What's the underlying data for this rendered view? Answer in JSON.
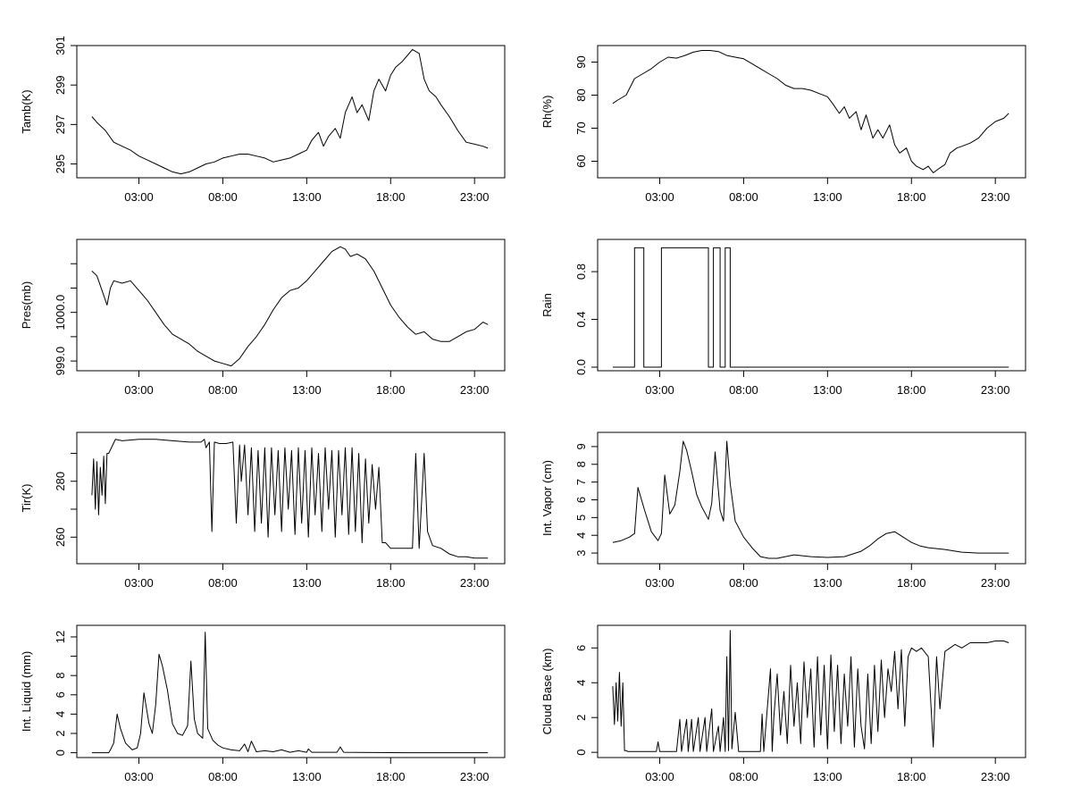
{
  "figure": {
    "type": "multi-panel time series"
  },
  "x_axis": {
    "tick_labels": [
      "03:00",
      "08:00",
      "13:00",
      "18:00",
      "23:00"
    ],
    "tick_hours": [
      3,
      8,
      13,
      18,
      23
    ],
    "range_hours": [
      -0.7,
      24.8
    ]
  },
  "chart_data": [
    {
      "id": "tamb",
      "type": "line",
      "title": "",
      "xlabel": "",
      "ylabel": "Tamb(K)",
      "ylim": [
        294.3,
        301.0
      ],
      "yticks": [
        295,
        297,
        299,
        301
      ],
      "ytick_labels": [
        "295",
        "297",
        "299",
        "301"
      ],
      "x": [
        0.2,
        0.5,
        1,
        1.5,
        2,
        2.5,
        3,
        3.5,
        4,
        4.5,
        5,
        5.5,
        6,
        6.5,
        7,
        7.5,
        8,
        8.5,
        9,
        9.5,
        10,
        10.5,
        11,
        11.5,
        12,
        12.5,
        13,
        13.3,
        13.7,
        14,
        14.3,
        14.7,
        15,
        15.3,
        15.7,
        16,
        16.3,
        16.7,
        17,
        17.3,
        17.7,
        18,
        18.3,
        18.7,
        19,
        19.3,
        19.7,
        20,
        20.3,
        20.7,
        21,
        21.5,
        22,
        22.5,
        23,
        23.5,
        23.8
      ],
      "y": [
        297.4,
        297.1,
        296.7,
        296.1,
        295.9,
        295.7,
        295.4,
        295.2,
        295.0,
        294.8,
        294.6,
        294.5,
        294.6,
        294.8,
        295.0,
        295.1,
        295.3,
        295.4,
        295.5,
        295.5,
        295.4,
        295.3,
        295.1,
        295.2,
        295.3,
        295.5,
        295.7,
        296.2,
        296.6,
        295.9,
        296.4,
        296.8,
        296.3,
        297.6,
        298.4,
        297.6,
        298.0,
        297.2,
        298.7,
        299.3,
        298.7,
        299.5,
        299.9,
        300.2,
        300.5,
        300.8,
        300.6,
        299.3,
        298.7,
        298.4,
        298.0,
        297.4,
        296.7,
        296.1,
        296.0,
        295.9,
        295.8
      ]
    },
    {
      "id": "rh",
      "type": "line",
      "title": "",
      "xlabel": "",
      "ylabel": "Rh(%)",
      "ylim": [
        55.0,
        95.0
      ],
      "yticks": [
        60,
        70,
        80,
        90
      ],
      "ytick_labels": [
        "60",
        "70",
        "80",
        "90"
      ],
      "x": [
        0.2,
        0.5,
        1,
        1.5,
        2,
        2.5,
        3,
        3.5,
        4,
        4.5,
        5,
        5.5,
        6,
        6.5,
        7,
        7.5,
        8,
        8.5,
        9,
        9.5,
        10,
        10.5,
        11,
        11.5,
        12,
        12.5,
        13,
        13.3,
        13.7,
        14,
        14.3,
        14.7,
        15,
        15.3,
        15.7,
        16,
        16.3,
        16.7,
        17,
        17.3,
        17.7,
        18,
        18.3,
        18.7,
        19,
        19.3,
        19.7,
        20,
        20.3,
        20.7,
        21,
        21.5,
        22,
        22.5,
        23,
        23.5,
        23.8
      ],
      "y": [
        77.5,
        78.5,
        80.0,
        85.0,
        86.5,
        88.0,
        90.0,
        91.5,
        91.2,
        92.0,
        93.0,
        93.5,
        93.5,
        93.2,
        92.0,
        91.5,
        91.0,
        89.5,
        88.0,
        86.5,
        85.0,
        83.0,
        82.0,
        82.0,
        81.5,
        80.5,
        79.5,
        77.5,
        74.5,
        76.5,
        73.0,
        75.0,
        69.5,
        74.0,
        67.0,
        69.5,
        67.0,
        71.0,
        65.0,
        62.5,
        64.0,
        60.0,
        58.5,
        57.5,
        58.5,
        56.5,
        58.0,
        59.0,
        62.5,
        64.0,
        64.5,
        65.5,
        67.0,
        70.0,
        72.0,
        73.0,
        74.5
      ]
    },
    {
      "id": "pres",
      "type": "line",
      "title": "",
      "xlabel": "",
      "ylabel": "Pres(mb)",
      "ylim": [
        998.8,
        1001.5
      ],
      "yticks": [
        999.0,
        999.5,
        1000.0,
        1000.5,
        1001.0
      ],
      "ytick_labels": [
        "999.0",
        "",
        "1000.0",
        "",
        ""
      ],
      "x": [
        0.2,
        0.5,
        0.7,
        0.9,
        1.1,
        1.3,
        1.5,
        2,
        2.5,
        3,
        3.5,
        4,
        4.5,
        5,
        5.5,
        6,
        6.5,
        7,
        7.5,
        8,
        8.5,
        9,
        9.5,
        10,
        10.5,
        11,
        11.5,
        12,
        12.5,
        13,
        13.5,
        14,
        14.5,
        15,
        15.3,
        15.6,
        16,
        16.5,
        17,
        17.5,
        18,
        18.5,
        19,
        19.5,
        20,
        20.5,
        21,
        21.5,
        22,
        22.5,
        23,
        23.5,
        23.8
      ],
      "y": [
        1000.85,
        1000.75,
        1000.55,
        1000.35,
        1000.15,
        1000.5,
        1000.65,
        1000.6,
        1000.65,
        1000.45,
        1000.25,
        1000.0,
        999.75,
        999.55,
        999.45,
        999.35,
        999.2,
        999.1,
        999.0,
        998.95,
        998.9,
        999.05,
        999.3,
        999.5,
        999.75,
        1000.05,
        1000.3,
        1000.45,
        1000.5,
        1000.65,
        1000.85,
        1001.05,
        1001.25,
        1001.35,
        1001.3,
        1001.15,
        1001.2,
        1001.1,
        1000.85,
        1000.5,
        1000.15,
        999.9,
        999.7,
        999.55,
        999.6,
        999.45,
        999.4,
        999.4,
        999.5,
        999.6,
        999.65,
        999.8,
        999.75
      ]
    },
    {
      "id": "rain",
      "type": "line",
      "title": "",
      "xlabel": "",
      "ylabel": "Rain",
      "ylim": [
        -0.03,
        1.07
      ],
      "yticks": [
        0.0,
        0.4,
        0.8
      ],
      "ytick_labels": [
        "0.0",
        "0.4",
        "0.8"
      ],
      "x": [
        0.2,
        1.5,
        1.5,
        2.05,
        2.05,
        3.1,
        3.1,
        5.9,
        5.9,
        6.2,
        6.2,
        6.6,
        6.6,
        6.9,
        6.9,
        7.2,
        7.2,
        23.8
      ],
      "y": [
        0,
        0,
        1,
        1,
        0,
        0,
        1,
        1,
        0,
        0,
        1,
        1,
        0,
        0,
        1,
        1,
        0,
        0
      ]
    },
    {
      "id": "tir",
      "type": "line",
      "title": "",
      "xlabel": "",
      "ylabel": "Tir(K)",
      "ylim": [
        250.5,
        297.5
      ],
      "yticks": [
        260,
        270,
        280,
        290
      ],
      "ytick_labels": [
        "260",
        "",
        "280",
        ""
      ],
      "x": [
        0.2,
        0.3,
        0.4,
        0.5,
        0.6,
        0.7,
        0.8,
        0.9,
        1.0,
        1.1,
        1.2,
        1.6,
        2,
        3,
        4,
        5,
        6,
        6.4,
        6.7,
        6.9,
        7.0,
        7.2,
        7.35,
        7.5,
        7.8,
        8.2,
        8.6,
        8.8,
        9,
        9.1,
        9.3,
        9.5,
        9.7,
        9.9,
        10.1,
        10.3,
        10.5,
        10.7,
        10.9,
        11.1,
        11.3,
        11.5,
        11.7,
        11.9,
        12.1,
        12.3,
        12.5,
        12.7,
        12.9,
        13.1,
        13.3,
        13.5,
        13.7,
        13.9,
        14.1,
        14.3,
        14.5,
        14.7,
        14.9,
        15.1,
        15.3,
        15.5,
        15.7,
        15.9,
        16.1,
        16.3,
        16.5,
        16.7,
        16.9,
        17.1,
        17.3,
        17.5,
        17.7,
        18,
        18.5,
        19,
        19.3,
        19.5,
        19.7,
        20,
        20.2,
        20.5,
        21,
        21.5,
        22,
        22.5,
        23,
        23.5,
        23.8
      ],
      "y": [
        275,
        288,
        270,
        287,
        268,
        285,
        275,
        289,
        272,
        290,
        290,
        295,
        294.5,
        295,
        295,
        294.5,
        294,
        294,
        294,
        295,
        292,
        294,
        262,
        294,
        293.5,
        293.5,
        294,
        265,
        293,
        280,
        293,
        268,
        292,
        262,
        291,
        265,
        292,
        260,
        292,
        268,
        291,
        262,
        292,
        270,
        291,
        261,
        292,
        265,
        291,
        260,
        292,
        268,
        290,
        262,
        292,
        270,
        291,
        260,
        291,
        268,
        292,
        261,
        292,
        262,
        290,
        258,
        288,
        265,
        286,
        270,
        285,
        258,
        258,
        256,
        256,
        256,
        256,
        290,
        256,
        290,
        262,
        257,
        256,
        254,
        253,
        253,
        252.5,
        252.5,
        252.5
      ]
    },
    {
      "id": "vapor",
      "type": "line",
      "title": "",
      "xlabel": "",
      "ylabel": "Int. Vapor (cm)",
      "ylim": [
        2.4,
        9.8
      ],
      "yticks": [
        3,
        4,
        5,
        6,
        7,
        8,
        9
      ],
      "ytick_labels": [
        "3",
        "4",
        "5",
        "6",
        "7",
        "8",
        "9"
      ],
      "x": [
        0.2,
        0.7,
        1.2,
        1.5,
        1.7,
        2.1,
        2.5,
        2.9,
        3.1,
        3.3,
        3.6,
        3.9,
        4.2,
        4.4,
        4.6,
        4.9,
        5.2,
        5.5,
        5.9,
        6.1,
        6.3,
        6.6,
        6.8,
        7.0,
        7.2,
        7.5,
        8,
        8.5,
        9,
        9.5,
        10,
        11,
        12,
        13,
        14,
        15,
        15.5,
        16,
        16.5,
        17,
        17.5,
        18,
        18.5,
        19,
        20,
        21,
        22,
        23,
        23.8
      ],
      "y": [
        3.6,
        3.7,
        3.9,
        4.1,
        6.7,
        5.4,
        4.2,
        3.7,
        4.1,
        7.4,
        5.2,
        5.7,
        7.6,
        9.3,
        8.8,
        7.6,
        6.3,
        5.6,
        4.9,
        5.8,
        8.7,
        5.4,
        4.8,
        9.3,
        6.9,
        4.8,
        3.9,
        3.3,
        2.8,
        2.7,
        2.7,
        2.9,
        2.8,
        2.75,
        2.8,
        3.1,
        3.4,
        3.8,
        4.1,
        4.2,
        3.9,
        3.6,
        3.4,
        3.3,
        3.2,
        3.05,
        3.0,
        3.0,
        3.0
      ]
    },
    {
      "id": "liquid",
      "type": "line",
      "title": "",
      "xlabel": "",
      "ylabel": "Int. Liquid (mm)",
      "ylim": [
        -0.5,
        13.2
      ],
      "yticks": [
        0,
        2,
        4,
        6,
        8,
        10,
        12
      ],
      "ytick_labels": [
        "0",
        "2",
        "4",
        "6",
        "8",
        "",
        "12"
      ],
      "x": [
        0.2,
        1.0,
        1.2,
        1.3,
        1.5,
        1.7,
        1.9,
        2.2,
        2.6,
        2.9,
        3.1,
        3.3,
        3.6,
        3.8,
        4.0,
        4.2,
        4.4,
        4.7,
        5.0,
        5.3,
        5.6,
        5.9,
        6.1,
        6.3,
        6.5,
        6.8,
        6.95,
        7.1,
        7.4,
        7.7,
        8,
        8.5,
        9,
        9.3,
        9.5,
        9.7,
        10,
        10.5,
        11,
        11.5,
        12,
        12.5,
        13,
        13.1,
        13.3,
        14,
        14.8,
        15,
        15.2,
        16,
        17,
        18,
        19,
        20,
        21,
        22,
        23,
        23.8
      ],
      "y": [
        0,
        0,
        0,
        0.3,
        1.0,
        4.0,
        2.5,
        1.0,
        0.3,
        0.5,
        2.0,
        6.2,
        3.0,
        2.0,
        5.0,
        10.2,
        9.0,
        6.5,
        3.0,
        2.0,
        1.8,
        2.8,
        9.5,
        3.5,
        2.0,
        1.5,
        12.5,
        2.5,
        1.3,
        0.8,
        0.5,
        0.3,
        0.2,
        0.9,
        0.1,
        1.2,
        0.1,
        0.2,
        0.1,
        0.3,
        0.05,
        0.2,
        0.05,
        0.4,
        0.05,
        0.05,
        0.05,
        0.6,
        0.05,
        0.03,
        0.02,
        0.01,
        0,
        0,
        0,
        0,
        0,
        0
      ]
    },
    {
      "id": "cloudbase",
      "type": "line",
      "title": "",
      "xlabel": "",
      "ylabel": "Cloud Base (km)",
      "ylim": [
        -0.3,
        7.3
      ],
      "yticks": [
        0,
        2,
        4,
        6
      ],
      "ytick_labels": [
        "0",
        "2",
        "4",
        "6"
      ],
      "x": [
        0.2,
        0.3,
        0.4,
        0.5,
        0.6,
        0.7,
        0.8,
        0.9,
        1.0,
        1.1,
        1.2,
        2,
        2.8,
        2.9,
        3,
        4,
        4.2,
        4.3,
        4.6,
        4.7,
        4.9,
        5.0,
        5.3,
        5.4,
        5.7,
        5.8,
        6.1,
        6.2,
        6.5,
        6.6,
        6.8,
        6.9,
        7.0,
        7.1,
        7.2,
        7.3,
        7.5,
        7.7,
        8,
        8.5,
        9,
        9.1,
        9.2,
        9.6,
        9.7,
        9.8,
        10.0,
        10.2,
        10.4,
        10.6,
        10.8,
        11.0,
        11.2,
        11.4,
        11.6,
        11.8,
        12.0,
        12.2,
        12.4,
        12.6,
        12.8,
        13.0,
        13.2,
        13.4,
        13.6,
        13.8,
        14.0,
        14.2,
        14.4,
        14.6,
        14.8,
        15.0,
        15.2,
        15.4,
        15.6,
        15.8,
        16.0,
        16.2,
        16.4,
        16.6,
        16.8,
        17.0,
        17.2,
        17.4,
        17.6,
        17.8,
        18,
        18.3,
        18.6,
        19,
        19.3,
        19.5,
        19.7,
        20,
        20.3,
        20.6,
        21,
        21.5,
        22,
        22.5,
        23,
        23.5,
        23.8
      ],
      "y": [
        3.8,
        1.6,
        4.0,
        1.8,
        4.6,
        1.5,
        4.0,
        0.1,
        0.1,
        0.05,
        0.05,
        0.05,
        0.05,
        0.6,
        0.05,
        0.05,
        1.9,
        0.05,
        1.9,
        0.05,
        1.9,
        0.05,
        2.0,
        0.05,
        2.0,
        0.05,
        2.5,
        0.05,
        1.5,
        0.05,
        2.0,
        0.05,
        5.5,
        0.1,
        7.0,
        0.2,
        2.3,
        0.05,
        0.05,
        0.05,
        0.05,
        2.2,
        0.05,
        4.8,
        0.05,
        2.0,
        4.5,
        1.0,
        3.5,
        0.5,
        5.0,
        1.5,
        4.0,
        0.5,
        5.2,
        2.0,
        4.8,
        0.3,
        5.5,
        1.0,
        5.0,
        0.2,
        5.6,
        1.2,
        5.0,
        0.5,
        4.5,
        1.5,
        5.5,
        0.3,
        4.8,
        1.5,
        0.2,
        4.5,
        0.5,
        5.0,
        1.2,
        5.3,
        2.0,
        4.8,
        3.5,
        5.8,
        2.5,
        5.9,
        1.5,
        5.5,
        6.0,
        5.8,
        6.0,
        5.5,
        0.3,
        5.5,
        2.5,
        5.8,
        6.0,
        6.2,
        6.0,
        6.3,
        6.3,
        6.3,
        6.4,
        6.4,
        6.3
      ]
    }
  ]
}
